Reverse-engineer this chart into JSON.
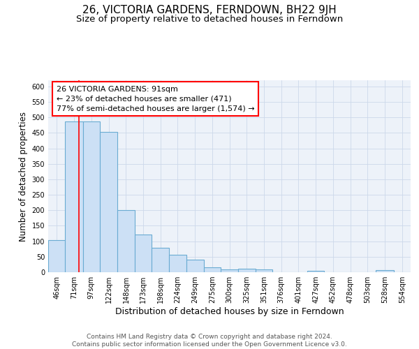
{
  "title": "26, VICTORIA GARDENS, FERNDOWN, BH22 9JH",
  "subtitle": "Size of property relative to detached houses in Ferndown",
  "xlabel": "Distribution of detached houses by size in Ferndown",
  "ylabel": "Number of detached properties",
  "bin_labels": [
    "46sqm",
    "71sqm",
    "97sqm",
    "122sqm",
    "148sqm",
    "173sqm",
    "198sqm",
    "224sqm",
    "249sqm",
    "275sqm",
    "300sqm",
    "325sqm",
    "351sqm",
    "376sqm",
    "401sqm",
    "427sqm",
    "452sqm",
    "478sqm",
    "503sqm",
    "528sqm",
    "554sqm"
  ],
  "bin_edges": [
    46,
    71,
    97,
    122,
    148,
    173,
    198,
    224,
    249,
    275,
    300,
    325,
    351,
    376,
    401,
    427,
    452,
    478,
    503,
    528,
    554,
    579
  ],
  "bar_heights": [
    103,
    487,
    487,
    453,
    200,
    122,
    80,
    57,
    40,
    15,
    10,
    12,
    8,
    0,
    0,
    5,
    0,
    0,
    0,
    7,
    0
  ],
  "bar_color": "#cce0f5",
  "bar_edge_color": "#6aabd2",
  "grid_color": "#ccd8ea",
  "background_color": "#edf2f9",
  "red_line_x": 91,
  "annotation_text": "26 VICTORIA GARDENS: 91sqm\n← 23% of detached houses are smaller (471)\n77% of semi-detached houses are larger (1,574) →",
  "annotation_box_color": "white",
  "annotation_box_edge": "red",
  "ylim": [
    0,
    620
  ],
  "yticks": [
    0,
    50,
    100,
    150,
    200,
    250,
    300,
    350,
    400,
    450,
    500,
    550,
    600
  ],
  "footer_text": "Contains HM Land Registry data © Crown copyright and database right 2024.\nContains public sector information licensed under the Open Government Licence v3.0.",
  "title_fontsize": 11,
  "subtitle_fontsize": 9.5,
  "xlabel_fontsize": 9,
  "ylabel_fontsize": 8.5,
  "tick_fontsize": 7,
  "footer_fontsize": 6.5,
  "annot_fontsize": 8
}
